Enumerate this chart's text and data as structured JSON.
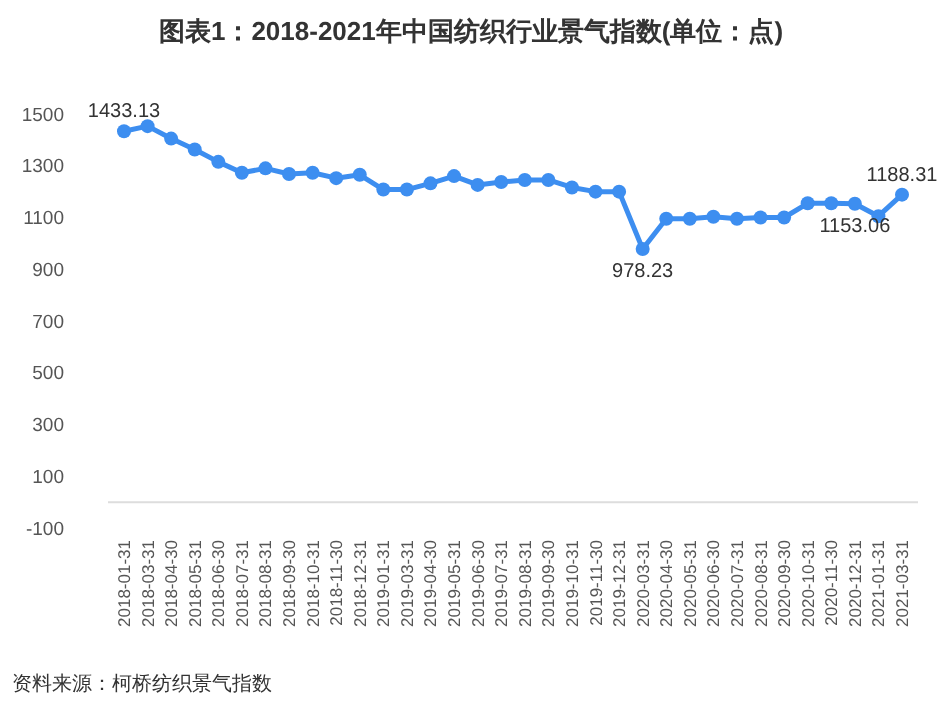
{
  "chart_data": {
    "type": "line",
    "title": "图表1：2018-2021年中国纺织行业景气指数(单位：点)",
    "categories": [
      "2018-01-31",
      "2018-03-31",
      "2018-04-30",
      "2018-05-31",
      "2018-06-30",
      "2018-07-31",
      "2018-08-31",
      "2018-09-30",
      "2018-10-31",
      "2018-11-30",
      "2018-12-31",
      "2019-01-31",
      "2019-03-31",
      "2019-04-30",
      "2019-05-31",
      "2019-06-30",
      "2019-07-31",
      "2019-08-31",
      "2019-09-30",
      "2019-10-31",
      "2019-11-30",
      "2019-12-31",
      "2020-03-31",
      "2020-04-30",
      "2020-05-31",
      "2020-06-30",
      "2020-07-31",
      "2020-08-31",
      "2020-09-30",
      "2020-10-31",
      "2020-11-30",
      "2020-12-31",
      "2021-01-31",
      "2021-03-31"
    ],
    "series": [
      {
        "color": "#3d8ef0",
        "values": [
          1433.13,
          1453,
          1405,
          1363,
          1315,
          1273,
          1290,
          1268,
          1273,
          1252,
          1265,
          1208,
          1208,
          1232,
          1260,
          1226,
          1237,
          1245,
          1245,
          1216,
          1200,
          1200,
          978.23,
          1095,
          1095,
          1103,
          1095,
          1100,
          1100,
          1155,
          1155,
          1153.06,
          1105,
          1188.31
        ],
        "value_labels": [
          "1433.13",
          null,
          null,
          null,
          null,
          null,
          null,
          null,
          null,
          null,
          null,
          null,
          null,
          null,
          null,
          null,
          null,
          null,
          null,
          null,
          null,
          null,
          "978.23",
          null,
          null,
          null,
          null,
          null,
          null,
          null,
          null,
          "1153.06",
          null,
          "1188.31"
        ]
      }
    ],
    "ylim": [
      -100,
      1500
    ],
    "yticks": [
      -100,
      100,
      300,
      500,
      700,
      900,
      1100,
      1300,
      1500
    ],
    "grid": false,
    "marker": "circle",
    "line_style": "solid",
    "annotations": [
      "资料来源：柯桥纺织景气指数"
    ]
  }
}
